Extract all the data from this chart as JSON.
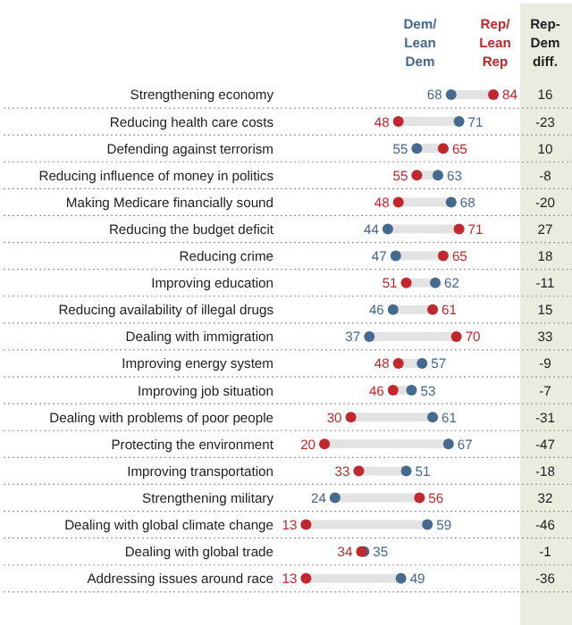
{
  "chart_data": {
    "type": "scatter",
    "orientation": "horizontal",
    "data_labels": true,
    "legend": "top right",
    "grid": "y",
    "categories": [
      "Strengthening economy",
      "Reducing health care costs",
      "Defending against terrorism",
      "Reducing influence of money in politics",
      "Making Medicare financially sound",
      "Reducing the budget deficit",
      "Reducing crime",
      "Improving education",
      "Reducing availability of illegal drugs",
      "Dealing with immigration",
      "Improving energy system",
      "Improving job situation",
      "Dealing with problems of poor people",
      "Protecting the environment",
      "Improving transportation",
      "Strengthening military",
      "Dealing with global climate change",
      "Dealing with global trade",
      "Addressing issues around race"
    ],
    "series": [
      {
        "name": "Dem/Lean Dem",
        "color": "#46698e",
        "values": [
          68,
          71,
          55,
          63,
          68,
          44,
          47,
          62,
          46,
          37,
          57,
          53,
          61,
          67,
          51,
          24,
          59,
          35,
          49
        ]
      },
      {
        "name": "Rep/Lean Rep",
        "color": "#c1272d",
        "values": [
          84,
          48,
          65,
          55,
          48,
          71,
          65,
          51,
          61,
          70,
          48,
          46,
          30,
          20,
          33,
          56,
          13,
          34,
          13
        ]
      }
    ],
    "annotations": [
      "Rep-Dem diff.",
      "16",
      "-23",
      "10",
      "-8",
      "-20",
      "27",
      "18",
      "-11",
      "15",
      "33",
      "-9",
      "-7",
      "-31",
      "-47",
      "-18",
      "32",
      "-46",
      "-1",
      "-36"
    ]
  }
}
